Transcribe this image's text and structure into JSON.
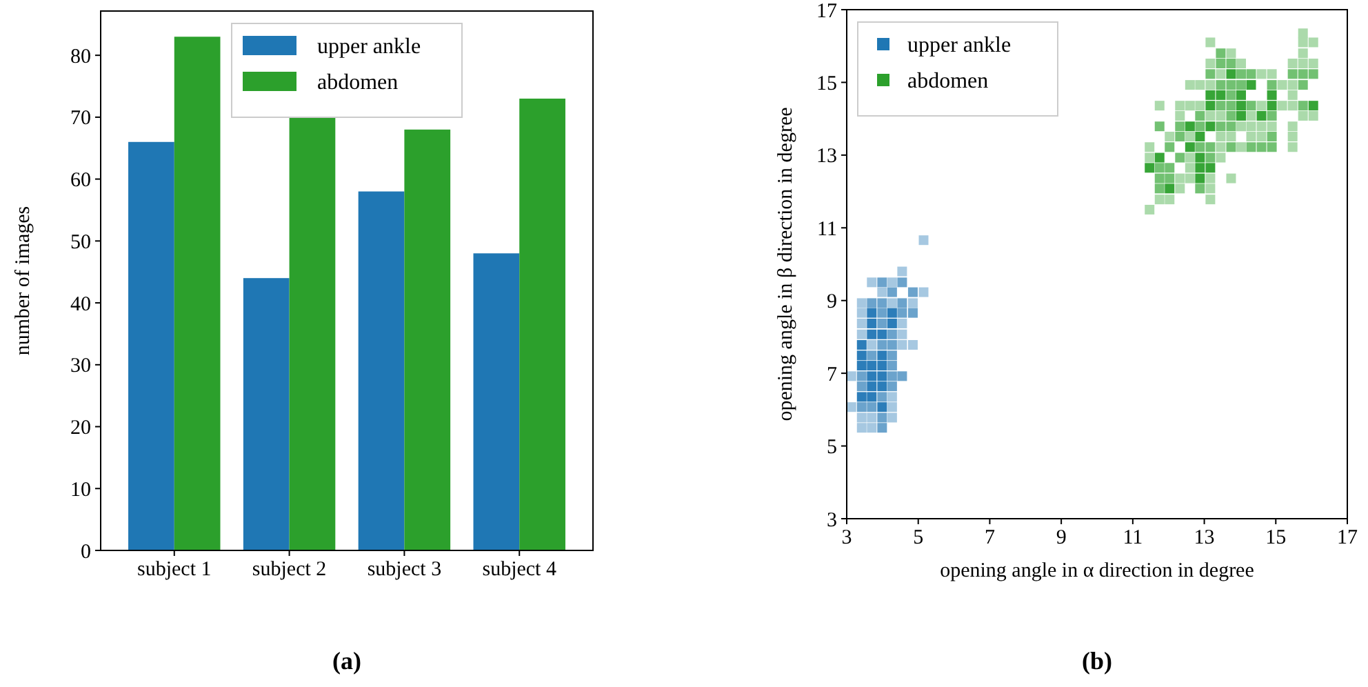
{
  "chart_data": [
    {
      "type": "bar",
      "categories": [
        "subject 1",
        "subject 2",
        "subject 3",
        "subject 4"
      ],
      "ylabel": "number of images",
      "ylim": [
        0,
        87.15
      ],
      "yticks": [
        0,
        10,
        20,
        30,
        40,
        50,
        60,
        70,
        80
      ],
      "legend": "top",
      "annotations": [
        "(a)"
      ],
      "series": [
        {
          "name": "upper ankle",
          "color": "#1f77b4",
          "values": [
            66,
            44,
            58,
            48
          ]
        },
        {
          "name": "abdomen",
          "color": "#2ca02c",
          "values": [
            83,
            70,
            68,
            73
          ]
        }
      ]
    },
    {
      "type": "scatter",
      "marker": "square",
      "xlabel": "opening angle in α direction in degree",
      "ylabel": "opening angle in β direction in degree",
      "xlim": [
        3,
        17
      ],
      "xticks": [
        3,
        5,
        7,
        9,
        11,
        13,
        15,
        17
      ],
      "ylim": [
        3,
        17
      ],
      "yticks": [
        3,
        5,
        7,
        9,
        11,
        13,
        15,
        17
      ],
      "legend": "top left",
      "annotations": [
        "(b)"
      ],
      "series": [
        {
          "name": "upper ankle",
          "color": "#1f77b4",
          "x": [
            5.15,
            4.55,
            3.7,
            3.99,
            4.27,
            4.55,
            3.99,
            4.27,
            4.85,
            5.15,
            3.42,
            3.7,
            3.99,
            4.27,
            4.55,
            4.85,
            3.42,
            3.7,
            3.99,
            4.27,
            4.55,
            4.85,
            3.42,
            3.7,
            3.99,
            4.27,
            4.55,
            3.42,
            3.7,
            3.99,
            4.27,
            4.55,
            3.42,
            3.7,
            3.99,
            4.27,
            4.55,
            4.85,
            3.42,
            3.7,
            3.99,
            4.27,
            3.42,
            3.7,
            3.99,
            4.27,
            3.13,
            3.42,
            3.7,
            3.99,
            4.27,
            4.55,
            3.42,
            3.7,
            3.99,
            4.27,
            3.42,
            3.7,
            3.99,
            4.27,
            3.13,
            3.42,
            3.7,
            3.99,
            4.27,
            3.42,
            3.7,
            3.99,
            4.27,
            3.42,
            3.7,
            3.99
          ],
          "values": [
            10.66,
            9.8,
            9.5,
            9.5,
            9.5,
            9.5,
            9.23,
            9.23,
            9.23,
            9.23,
            8.93,
            8.93,
            8.93,
            8.93,
            8.93,
            8.93,
            8.66,
            8.66,
            8.66,
            8.66,
            8.66,
            8.66,
            8.37,
            8.37,
            8.37,
            8.37,
            8.37,
            8.07,
            8.07,
            8.07,
            8.07,
            8.07,
            7.78,
            7.78,
            7.78,
            7.78,
            7.78,
            7.78,
            7.49,
            7.49,
            7.49,
            7.49,
            7.21,
            7.21,
            7.21,
            7.21,
            6.92,
            6.92,
            6.92,
            6.92,
            6.92,
            6.92,
            6.64,
            6.64,
            6.64,
            6.64,
            6.35,
            6.35,
            6.35,
            6.35,
            6.07,
            6.07,
            6.07,
            6.07,
            6.07,
            5.78,
            5.78,
            5.78,
            5.78,
            5.5,
            5.5,
            5.5
          ],
          "colors": [
            "#a6c8e1",
            "#a6c8e1",
            "#a6c8e1",
            "#6ba3cc",
            "#a6c8e1",
            "#6ba3cc",
            "#a6c8e1",
            "#6ba3cc",
            "#6ba3cc",
            "#a6c8e1",
            "#a6c8e1",
            "#6ba3cc",
            "#6ba3cc",
            "#a6c8e1",
            "#6ba3cc",
            "#a6c8e1",
            "#a6c8e1",
            "#2c7db9",
            "#6ba3cc",
            "#2c7db9",
            "#6ba3cc",
            "#6ba3cc",
            "#a6c8e1",
            "#2c7db9",
            "#6ba3cc",
            "#2c7db9",
            "#a6c8e1",
            "#a6c8e1",
            "#2c7db9",
            "#2c7db9",
            "#6ba3cc",
            "#a6c8e1",
            "#2c7db9",
            "#a6c8e1",
            "#6ba3cc",
            "#6ba3cc",
            "#a6c8e1",
            "#a6c8e1",
            "#2c7db9",
            "#6ba3cc",
            "#2c7db9",
            "#6ba3cc",
            "#2c7db9",
            "#2c7db9",
            "#2c7db9",
            "#6ba3cc",
            "#a6c8e1",
            "#6ba3cc",
            "#2c7db9",
            "#2c7db9",
            "#6ba3cc",
            "#6ba3cc",
            "#6ba3cc",
            "#2c7db9",
            "#2c7db9",
            "#6ba3cc",
            "#2c7db9",
            "#2c7db9",
            "#6ba3cc",
            "#a6c8e1",
            "#a6c8e1",
            "#6ba3cc",
            "#6ba3cc",
            "#2c7db9",
            "#a6c8e1",
            "#a6c8e1",
            "#a6c8e1",
            "#6ba3cc",
            "#a6c8e1",
            "#a6c8e1",
            "#a6c8e1",
            "#6ba3cc"
          ]
        },
        {
          "name": "abdomen",
          "color": "#2ca02c",
          "x": [
            15.76,
            13.17,
            15.76,
            16.05,
            13.46,
            13.75,
            15.76,
            13.17,
            13.46,
            13.75,
            14.03,
            15.47,
            15.76,
            16.05,
            13.17,
            13.46,
            13.75,
            14.03,
            14.31,
            14.6,
            14.89,
            15.47,
            15.76,
            16.05,
            12.6,
            12.88,
            13.17,
            13.46,
            13.75,
            14.03,
            14.31,
            14.89,
            15.18,
            15.47,
            15.76,
            13.17,
            13.46,
            13.75,
            14.03,
            14.89,
            15.47,
            11.75,
            12.32,
            12.6,
            12.88,
            13.17,
            13.46,
            13.75,
            14.03,
            14.31,
            14.6,
            14.89,
            15.18,
            15.47,
            15.76,
            16.05,
            12.32,
            12.88,
            13.17,
            13.46,
            13.75,
            14.03,
            14.31,
            14.6,
            14.89,
            15.76,
            16.05,
            11.75,
            12.32,
            12.6,
            12.88,
            13.17,
            13.46,
            13.75,
            14.03,
            14.31,
            14.6,
            14.89,
            15.47,
            12.03,
            12.32,
            12.6,
            12.88,
            13.46,
            13.75,
            14.31,
            14.6,
            14.89,
            15.47,
            11.47,
            12.03,
            12.6,
            12.88,
            13.17,
            13.46,
            13.75,
            14.03,
            14.31,
            14.6,
            14.89,
            15.47,
            11.47,
            11.75,
            12.32,
            12.6,
            12.88,
            13.17,
            13.46,
            11.47,
            11.75,
            12.03,
            12.6,
            12.88,
            13.17,
            11.75,
            12.03,
            12.32,
            12.6,
            12.88,
            13.17,
            13.75,
            11.75,
            12.03,
            12.32,
            12.88,
            13.17,
            11.75,
            12.03,
            13.17,
            11.47
          ],
          "values": [
            16.35,
            16.1,
            16.1,
            16.1,
            15.8,
            15.8,
            15.8,
            15.52,
            15.52,
            15.52,
            15.52,
            15.52,
            15.52,
            15.52,
            15.23,
            15.23,
            15.23,
            15.23,
            15.23,
            15.23,
            15.23,
            15.23,
            15.23,
            15.23,
            14.93,
            14.93,
            14.93,
            14.93,
            14.93,
            14.93,
            14.93,
            14.93,
            14.93,
            14.93,
            14.93,
            14.65,
            14.65,
            14.65,
            14.65,
            14.65,
            14.65,
            14.36,
            14.36,
            14.36,
            14.36,
            14.36,
            14.36,
            14.36,
            14.36,
            14.36,
            14.36,
            14.36,
            14.36,
            14.36,
            14.36,
            14.36,
            14.08,
            14.08,
            14.08,
            14.08,
            14.08,
            14.08,
            14.08,
            14.08,
            14.08,
            14.08,
            14.08,
            13.79,
            13.79,
            13.79,
            13.79,
            13.79,
            13.79,
            13.79,
            13.79,
            13.79,
            13.79,
            13.79,
            13.79,
            13.51,
            13.51,
            13.51,
            13.51,
            13.51,
            13.51,
            13.51,
            13.51,
            13.51,
            13.51,
            13.22,
            13.22,
            13.22,
            13.22,
            13.22,
            13.22,
            13.22,
            13.22,
            13.22,
            13.22,
            13.22,
            13.22,
            12.93,
            12.93,
            12.93,
            12.93,
            12.93,
            12.93,
            12.93,
            12.65,
            12.65,
            12.65,
            12.65,
            12.65,
            12.65,
            12.36,
            12.36,
            12.36,
            12.36,
            12.36,
            12.36,
            12.36,
            12.08,
            12.08,
            12.08,
            12.08,
            12.08,
            11.78,
            11.78,
            11.78,
            11.5
          ],
          "colors": [
            "#abdaab",
            "#abdaab",
            "#abdaab",
            "#abdaab",
            "#72c172",
            "#abdaab",
            "#abdaab",
            "#abdaab",
            "#72c172",
            "#72c172",
            "#abdaab",
            "#abdaab",
            "#abdaab",
            "#abdaab",
            "#72c172",
            "#abdaab",
            "#37a537",
            "#72c172",
            "#72c172",
            "#abdaab",
            "#abdaab",
            "#72c172",
            "#72c172",
            "#72c172",
            "#abdaab",
            "#abdaab",
            "#abdaab",
            "#72c172",
            "#72c172",
            "#72c172",
            "#37a537",
            "#72c172",
            "#abdaab",
            "#abdaab",
            "#72c172",
            "#37a537",
            "#37a537",
            "#72c172",
            "#37a537",
            "#37a537",
            "#abdaab",
            "#abdaab",
            "#abdaab",
            "#abdaab",
            "#abdaab",
            "#37a537",
            "#72c172",
            "#72c172",
            "#37a537",
            "#72c172",
            "#abdaab",
            "#37a537",
            "#abdaab",
            "#abdaab",
            "#72c172",
            "#37a537",
            "#abdaab",
            "#72c172",
            "#abdaab",
            "#abdaab",
            "#72c172",
            "#37a537",
            "#abdaab",
            "#37a537",
            "#72c172",
            "#abdaab",
            "#abdaab",
            "#72c172",
            "#72c172",
            "#37a537",
            "#72c172",
            "#37a537",
            "#72c172",
            "#72c172",
            "#abdaab",
            "#abdaab",
            "#abdaab",
            "#abdaab",
            "#abdaab",
            "#abdaab",
            "#72c172",
            "#abdaab",
            "#37a537",
            "#abdaab",
            "#abdaab",
            "#abdaab",
            "#abdaab",
            "#72c172",
            "#abdaab",
            "#abdaab",
            "#72c172",
            "#37a537",
            "#72c172",
            "#72c172",
            "#abdaab",
            "#72c172",
            "#abdaab",
            "#72c172",
            "#72c172",
            "#72c172",
            "#abdaab",
            "#abdaab",
            "#37a537",
            "#72c172",
            "#abdaab",
            "#37a537",
            "#72c172",
            "#abdaab",
            "#37a537",
            "#72c172",
            "#72c172",
            "#abdaab",
            "#37a537",
            "#37a537",
            "#72c172",
            "#72c172",
            "#abdaab",
            "#abdaab",
            "#37a537",
            "#abdaab",
            "#abdaab",
            "#72c172",
            "#37a537",
            "#abdaab",
            "#72c172",
            "#abdaab",
            "#abdaab",
            "#abdaab",
            "#abdaab",
            "#abdaab"
          ]
        }
      ]
    }
  ]
}
